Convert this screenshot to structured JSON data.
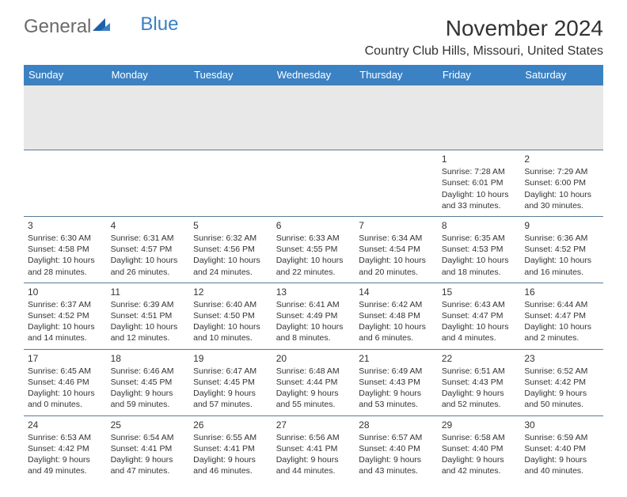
{
  "logo": {
    "text1": "General",
    "text2": "Blue"
  },
  "title": "November 2024",
  "location": "Country Club Hills, Missouri, United States",
  "headers": [
    "Sunday",
    "Monday",
    "Tuesday",
    "Wednesday",
    "Thursday",
    "Friday",
    "Saturday"
  ],
  "header_bg": "#3b82c4",
  "header_fg": "#ffffff",
  "divider_color": "#5a7a9a",
  "weeks": [
    [
      {
        "blank": true
      },
      {
        "blank": true
      },
      {
        "blank": true
      },
      {
        "blank": true
      },
      {
        "blank": true
      },
      {
        "day": "1",
        "sunrise": "Sunrise: 7:28 AM",
        "sunset": "Sunset: 6:01 PM",
        "daylight1": "Daylight: 10 hours",
        "daylight2": "and 33 minutes."
      },
      {
        "day": "2",
        "sunrise": "Sunrise: 7:29 AM",
        "sunset": "Sunset: 6:00 PM",
        "daylight1": "Daylight: 10 hours",
        "daylight2": "and 30 minutes."
      }
    ],
    [
      {
        "day": "3",
        "sunrise": "Sunrise: 6:30 AM",
        "sunset": "Sunset: 4:58 PM",
        "daylight1": "Daylight: 10 hours",
        "daylight2": "and 28 minutes."
      },
      {
        "day": "4",
        "sunrise": "Sunrise: 6:31 AM",
        "sunset": "Sunset: 4:57 PM",
        "daylight1": "Daylight: 10 hours",
        "daylight2": "and 26 minutes."
      },
      {
        "day": "5",
        "sunrise": "Sunrise: 6:32 AM",
        "sunset": "Sunset: 4:56 PM",
        "daylight1": "Daylight: 10 hours",
        "daylight2": "and 24 minutes."
      },
      {
        "day": "6",
        "sunrise": "Sunrise: 6:33 AM",
        "sunset": "Sunset: 4:55 PM",
        "daylight1": "Daylight: 10 hours",
        "daylight2": "and 22 minutes."
      },
      {
        "day": "7",
        "sunrise": "Sunrise: 6:34 AM",
        "sunset": "Sunset: 4:54 PM",
        "daylight1": "Daylight: 10 hours",
        "daylight2": "and 20 minutes."
      },
      {
        "day": "8",
        "sunrise": "Sunrise: 6:35 AM",
        "sunset": "Sunset: 4:53 PM",
        "daylight1": "Daylight: 10 hours",
        "daylight2": "and 18 minutes."
      },
      {
        "day": "9",
        "sunrise": "Sunrise: 6:36 AM",
        "sunset": "Sunset: 4:52 PM",
        "daylight1": "Daylight: 10 hours",
        "daylight2": "and 16 minutes."
      }
    ],
    [
      {
        "day": "10",
        "sunrise": "Sunrise: 6:37 AM",
        "sunset": "Sunset: 4:52 PM",
        "daylight1": "Daylight: 10 hours",
        "daylight2": "and 14 minutes."
      },
      {
        "day": "11",
        "sunrise": "Sunrise: 6:39 AM",
        "sunset": "Sunset: 4:51 PM",
        "daylight1": "Daylight: 10 hours",
        "daylight2": "and 12 minutes."
      },
      {
        "day": "12",
        "sunrise": "Sunrise: 6:40 AM",
        "sunset": "Sunset: 4:50 PM",
        "daylight1": "Daylight: 10 hours",
        "daylight2": "and 10 minutes."
      },
      {
        "day": "13",
        "sunrise": "Sunrise: 6:41 AM",
        "sunset": "Sunset: 4:49 PM",
        "daylight1": "Daylight: 10 hours",
        "daylight2": "and 8 minutes."
      },
      {
        "day": "14",
        "sunrise": "Sunrise: 6:42 AM",
        "sunset": "Sunset: 4:48 PM",
        "daylight1": "Daylight: 10 hours",
        "daylight2": "and 6 minutes."
      },
      {
        "day": "15",
        "sunrise": "Sunrise: 6:43 AM",
        "sunset": "Sunset: 4:47 PM",
        "daylight1": "Daylight: 10 hours",
        "daylight2": "and 4 minutes."
      },
      {
        "day": "16",
        "sunrise": "Sunrise: 6:44 AM",
        "sunset": "Sunset: 4:47 PM",
        "daylight1": "Daylight: 10 hours",
        "daylight2": "and 2 minutes."
      }
    ],
    [
      {
        "day": "17",
        "sunrise": "Sunrise: 6:45 AM",
        "sunset": "Sunset: 4:46 PM",
        "daylight1": "Daylight: 10 hours",
        "daylight2": "and 0 minutes."
      },
      {
        "day": "18",
        "sunrise": "Sunrise: 6:46 AM",
        "sunset": "Sunset: 4:45 PM",
        "daylight1": "Daylight: 9 hours",
        "daylight2": "and 59 minutes."
      },
      {
        "day": "19",
        "sunrise": "Sunrise: 6:47 AM",
        "sunset": "Sunset: 4:45 PM",
        "daylight1": "Daylight: 9 hours",
        "daylight2": "and 57 minutes."
      },
      {
        "day": "20",
        "sunrise": "Sunrise: 6:48 AM",
        "sunset": "Sunset: 4:44 PM",
        "daylight1": "Daylight: 9 hours",
        "daylight2": "and 55 minutes."
      },
      {
        "day": "21",
        "sunrise": "Sunrise: 6:49 AM",
        "sunset": "Sunset: 4:43 PM",
        "daylight1": "Daylight: 9 hours",
        "daylight2": "and 53 minutes."
      },
      {
        "day": "22",
        "sunrise": "Sunrise: 6:51 AM",
        "sunset": "Sunset: 4:43 PM",
        "daylight1": "Daylight: 9 hours",
        "daylight2": "and 52 minutes."
      },
      {
        "day": "23",
        "sunrise": "Sunrise: 6:52 AM",
        "sunset": "Sunset: 4:42 PM",
        "daylight1": "Daylight: 9 hours",
        "daylight2": "and 50 minutes."
      }
    ],
    [
      {
        "day": "24",
        "sunrise": "Sunrise: 6:53 AM",
        "sunset": "Sunset: 4:42 PM",
        "daylight1": "Daylight: 9 hours",
        "daylight2": "and 49 minutes."
      },
      {
        "day": "25",
        "sunrise": "Sunrise: 6:54 AM",
        "sunset": "Sunset: 4:41 PM",
        "daylight1": "Daylight: 9 hours",
        "daylight2": "and 47 minutes."
      },
      {
        "day": "26",
        "sunrise": "Sunrise: 6:55 AM",
        "sunset": "Sunset: 4:41 PM",
        "daylight1": "Daylight: 9 hours",
        "daylight2": "and 46 minutes."
      },
      {
        "day": "27",
        "sunrise": "Sunrise: 6:56 AM",
        "sunset": "Sunset: 4:41 PM",
        "daylight1": "Daylight: 9 hours",
        "daylight2": "and 44 minutes."
      },
      {
        "day": "28",
        "sunrise": "Sunrise: 6:57 AM",
        "sunset": "Sunset: 4:40 PM",
        "daylight1": "Daylight: 9 hours",
        "daylight2": "and 43 minutes."
      },
      {
        "day": "29",
        "sunrise": "Sunrise: 6:58 AM",
        "sunset": "Sunset: 4:40 PM",
        "daylight1": "Daylight: 9 hours",
        "daylight2": "and 42 minutes."
      },
      {
        "day": "30",
        "sunrise": "Sunrise: 6:59 AM",
        "sunset": "Sunset: 4:40 PM",
        "daylight1": "Daylight: 9 hours",
        "daylight2": "and 40 minutes."
      }
    ]
  ]
}
